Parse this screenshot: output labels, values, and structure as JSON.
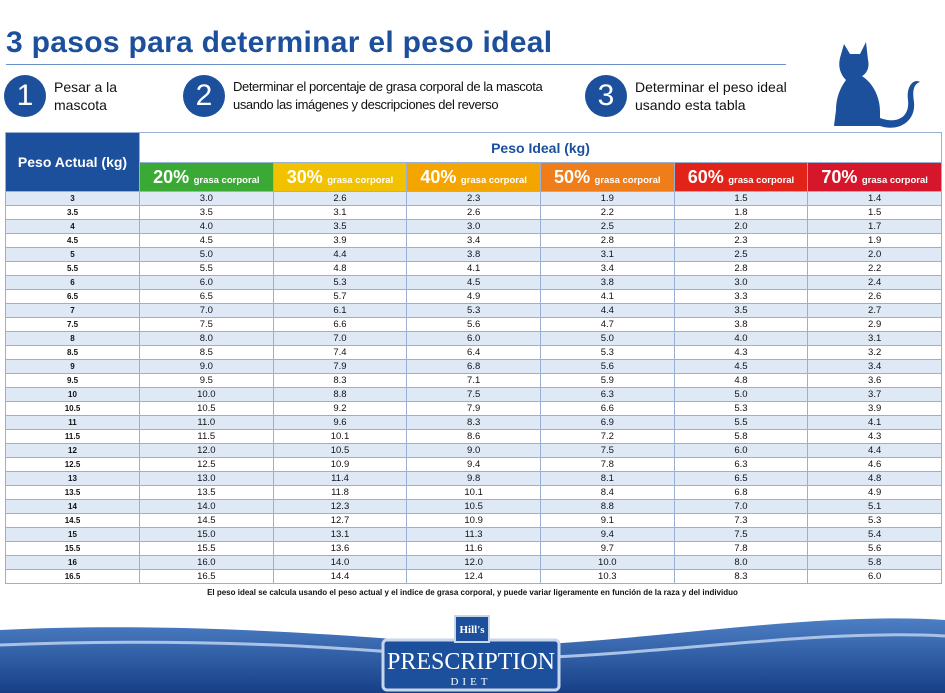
{
  "header": {
    "title": "3 pasos para determinar el peso ideal"
  },
  "steps": [
    {
      "number": "1",
      "text": [
        "Pesar a la",
        "mascota"
      ]
    },
    {
      "number": "2",
      "text": [
        "Determinar el porcentaje de grasa corporal de la mascota",
        "usando las imágenes y descripciones del reverso"
      ]
    },
    {
      "number": "3",
      "text": [
        "Determinar el peso ideal",
        "usando esta tabla"
      ]
    }
  ],
  "table": {
    "row_header": "Peso Actual (kg)",
    "group_header": "Peso Ideal (kg)",
    "columns": [
      {
        "pct": "20%",
        "label": "grasa corporal"
      },
      {
        "pct": "30%",
        "label": "grasa corporal"
      },
      {
        "pct": "40%",
        "label": "grasa corporal"
      },
      {
        "pct": "50%",
        "label": "grasa corporal"
      },
      {
        "pct": "60%",
        "label": "grasa corporal"
      },
      {
        "pct": "70%",
        "label": "grasa corporal"
      }
    ],
    "rows": [
      [
        "3",
        "3.0",
        "2.6",
        "2.3",
        "1.9",
        "1.5",
        "1.4"
      ],
      [
        "3.5",
        "3.5",
        "3.1",
        "2.6",
        "2.2",
        "1.8",
        "1.5"
      ],
      [
        "4",
        "4.0",
        "3.5",
        "3.0",
        "2.5",
        "2.0",
        "1.7"
      ],
      [
        "4.5",
        "4.5",
        "3.9",
        "3.4",
        "2.8",
        "2.3",
        "1.9"
      ],
      [
        "5",
        "5.0",
        "4.4",
        "3.8",
        "3.1",
        "2.5",
        "2.0"
      ],
      [
        "5.5",
        "5.5",
        "4.8",
        "4.1",
        "3.4",
        "2.8",
        "2.2"
      ],
      [
        "6",
        "6.0",
        "5.3",
        "4.5",
        "3.8",
        "3.0",
        "2.4"
      ],
      [
        "6.5",
        "6.5",
        "5.7",
        "4.9",
        "4.1",
        "3.3",
        "2.6"
      ],
      [
        "7",
        "7.0",
        "6.1",
        "5.3",
        "4.4",
        "3.5",
        "2.7"
      ],
      [
        "7.5",
        "7.5",
        "6.6",
        "5.6",
        "4.7",
        "3.8",
        "2.9"
      ],
      [
        "8",
        "8.0",
        "7.0",
        "6.0",
        "5.0",
        "4.0",
        "3.1"
      ],
      [
        "8.5",
        "8.5",
        "7.4",
        "6.4",
        "5.3",
        "4.3",
        "3.2"
      ],
      [
        "9",
        "9.0",
        "7.9",
        "6.8",
        "5.6",
        "4.5",
        "3.4"
      ],
      [
        "9.5",
        "9.5",
        "8.3",
        "7.1",
        "5.9",
        "4.8",
        "3.6"
      ],
      [
        "10",
        "10.0",
        "8.8",
        "7.5",
        "6.3",
        "5.0",
        "3.7"
      ],
      [
        "10.5",
        "10.5",
        "9.2",
        "7.9",
        "6.6",
        "5.3",
        "3.9"
      ],
      [
        "11",
        "11.0",
        "9.6",
        "8.3",
        "6.9",
        "5.5",
        "4.1"
      ],
      [
        "11.5",
        "11.5",
        "10.1",
        "8.6",
        "7.2",
        "5.8",
        "4.3"
      ],
      [
        "12",
        "12.0",
        "10.5",
        "9.0",
        "7.5",
        "6.0",
        "4.4"
      ],
      [
        "12.5",
        "12.5",
        "10.9",
        "9.4",
        "7.8",
        "6.3",
        "4.6"
      ],
      [
        "13",
        "13.0",
        "11.4",
        "9.8",
        "8.1",
        "6.5",
        "4.8"
      ],
      [
        "13.5",
        "13.5",
        "11.8",
        "10.1",
        "8.4",
        "6.8",
        "4.9"
      ],
      [
        "14",
        "14.0",
        "12.3",
        "10.5",
        "8.8",
        "7.0",
        "5.1"
      ],
      [
        "14.5",
        "14.5",
        "12.7",
        "10.9",
        "9.1",
        "7.3",
        "5.3"
      ],
      [
        "15",
        "15.0",
        "13.1",
        "11.3",
        "9.4",
        "7.5",
        "5.4"
      ],
      [
        "15.5",
        "15.5",
        "13.6",
        "11.6",
        "9.7",
        "7.8",
        "5.6"
      ],
      [
        "16",
        "16.0",
        "14.0",
        "12.0",
        "10.0",
        "8.0",
        "5.8"
      ],
      [
        "16.5",
        "16.5",
        "14.4",
        "12.4",
        "10.3",
        "8.3",
        "6.0"
      ]
    ]
  },
  "footnote": "El peso ideal se calcula usando el peso actual y el indice de grasa corporal, y puede variar ligeramente en función de la raza y del individuo",
  "logo": {
    "brand": "Hill's",
    "name": "PRESCRIPTION",
    "sub": "DIET"
  }
}
